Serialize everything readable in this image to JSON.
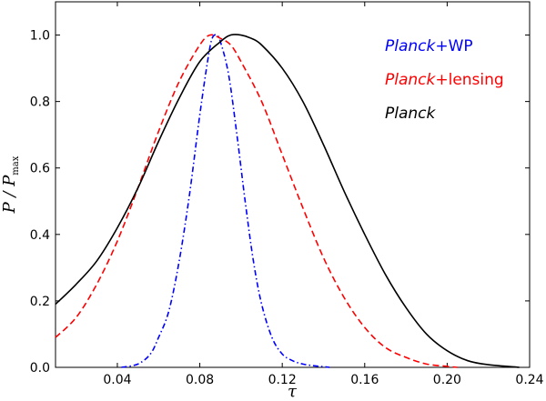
{
  "chart_data": {
    "type": "line",
    "title": "",
    "xlabel": "τ",
    "ylabel": "P / P_max",
    "xlim": [
      0.01,
      0.24
    ],
    "ylim": [
      0.0,
      1.1
    ],
    "xticks": [
      "0.04",
      "0.08",
      "0.12",
      "0.16",
      "0.20",
      "0.24"
    ],
    "yticks": [
      "0.0",
      "0.2",
      "0.4",
      "0.6",
      "0.8",
      "1.0"
    ],
    "legend_position": "top-right",
    "series": [
      {
        "name": "Planck+WP",
        "legend_main": "Planck",
        "legend_suffix": "+WP",
        "color": "#0000ff",
        "style": "dashdot",
        "x": [
          0.042,
          0.05,
          0.056,
          0.06,
          0.065,
          0.07,
          0.075,
          0.08,
          0.084,
          0.086,
          0.088,
          0.09,
          0.094,
          0.098,
          0.102,
          0.106,
          0.11,
          0.115,
          0.12,
          0.125,
          0.13,
          0.135,
          0.14,
          0.143
        ],
        "y": [
          0.0,
          0.01,
          0.04,
          0.09,
          0.17,
          0.32,
          0.52,
          0.76,
          0.93,
          0.99,
          1.0,
          0.98,
          0.88,
          0.7,
          0.5,
          0.32,
          0.19,
          0.09,
          0.04,
          0.02,
          0.01,
          0.005,
          0.002,
          0.0
        ]
      },
      {
        "name": "Planck+lensing",
        "legend_main": "Planck",
        "legend_suffix": "+lensing",
        "color": "#ff0000",
        "style": "dashed",
        "x": [
          0.01,
          0.02,
          0.03,
          0.04,
          0.05,
          0.06,
          0.07,
          0.08,
          0.085,
          0.09,
          0.095,
          0.1,
          0.11,
          0.12,
          0.13,
          0.14,
          0.15,
          0.16,
          0.17,
          0.18,
          0.19,
          0.2,
          0.205
        ],
        "y": [
          0.09,
          0.15,
          0.25,
          0.38,
          0.54,
          0.71,
          0.86,
          0.97,
          1.0,
          0.99,
          0.97,
          0.92,
          0.8,
          0.64,
          0.48,
          0.33,
          0.21,
          0.12,
          0.06,
          0.03,
          0.01,
          0.003,
          0.0
        ]
      },
      {
        "name": "Planck",
        "legend_main": "Planck",
        "legend_suffix": "",
        "color": "#000000",
        "style": "solid",
        "x": [
          0.01,
          0.02,
          0.03,
          0.04,
          0.05,
          0.06,
          0.07,
          0.08,
          0.09,
          0.095,
          0.1,
          0.105,
          0.11,
          0.12,
          0.13,
          0.14,
          0.15,
          0.16,
          0.17,
          0.18,
          0.19,
          0.2,
          0.21,
          0.22,
          0.235
        ],
        "y": [
          0.19,
          0.25,
          0.32,
          0.42,
          0.54,
          0.68,
          0.81,
          0.92,
          0.98,
          1.0,
          1.0,
          0.99,
          0.97,
          0.9,
          0.8,
          0.67,
          0.53,
          0.4,
          0.28,
          0.18,
          0.1,
          0.05,
          0.02,
          0.008,
          0.0
        ]
      }
    ]
  }
}
